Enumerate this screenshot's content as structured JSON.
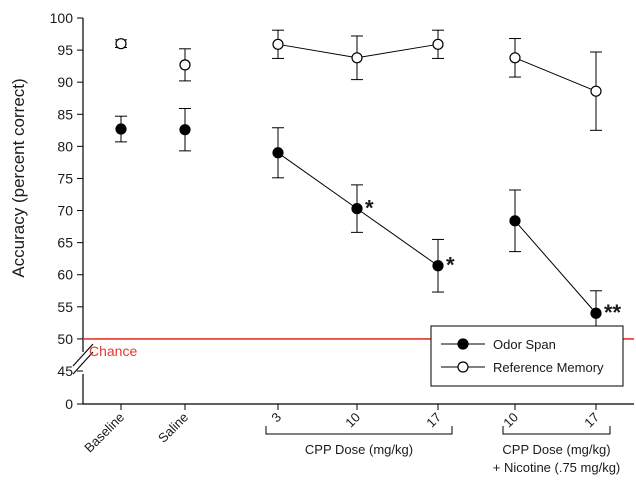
{
  "chart_data": {
    "type": "scatter",
    "ylabel": "Accuracy (percent correct)",
    "yticks": [
      0,
      45,
      50,
      55,
      60,
      65,
      70,
      75,
      80,
      85,
      90,
      95,
      100
    ],
    "y_axis_break": [
      0,
      45
    ],
    "categories": [
      "Baseline",
      "Saline",
      "3",
      "10",
      "17",
      "10",
      "17"
    ],
    "groups": [
      {
        "label": "CPP Dose (mg/kg)",
        "categories": [
          2,
          3,
          4
        ]
      },
      {
        "label": "CPP Dose (mg/kg)\n+ Nicotine (.75 mg/kg)",
        "categories": [
          5,
          6
        ]
      }
    ],
    "group_label_line1": [
      "CPP Dose (mg/kg)",
      "CPP Dose (mg/kg)"
    ],
    "group_label_line2": [
      "",
      "+ Nicotine (.75 mg/kg)"
    ],
    "series": [
      {
        "name": "Odor Span",
        "marker": "filled-circle",
        "color": "#000000",
        "values": [
          82.7,
          82.6,
          79.0,
          70.3,
          61.4,
          68.4,
          54.0
        ],
        "error": [
          2.0,
          3.3,
          3.9,
          3.7,
          4.1,
          4.8,
          3.5
        ],
        "connected_segments": [
          [
            2,
            4
          ],
          [
            5,
            6
          ]
        ]
      },
      {
        "name": "Reference Memory",
        "marker": "open-circle",
        "color": "#000000",
        "values": [
          96.0,
          92.7,
          95.9,
          93.8,
          95.9,
          93.8,
          88.6
        ],
        "error": [
          0.6,
          2.5,
          2.2,
          3.4,
          2.2,
          3.0,
          6.1
        ],
        "connected_segments": [
          [
            2,
            4
          ],
          [
            5,
            6
          ]
        ]
      }
    ],
    "reference_line": {
      "label": "Chance",
      "value": 50,
      "color": "#e03a2e"
    },
    "significance": [
      {
        "category": 3,
        "label": "*"
      },
      {
        "category": 4,
        "label": "*"
      },
      {
        "category": 6,
        "label": "**"
      }
    ],
    "legend_position": "bottom-right",
    "grid": false
  }
}
